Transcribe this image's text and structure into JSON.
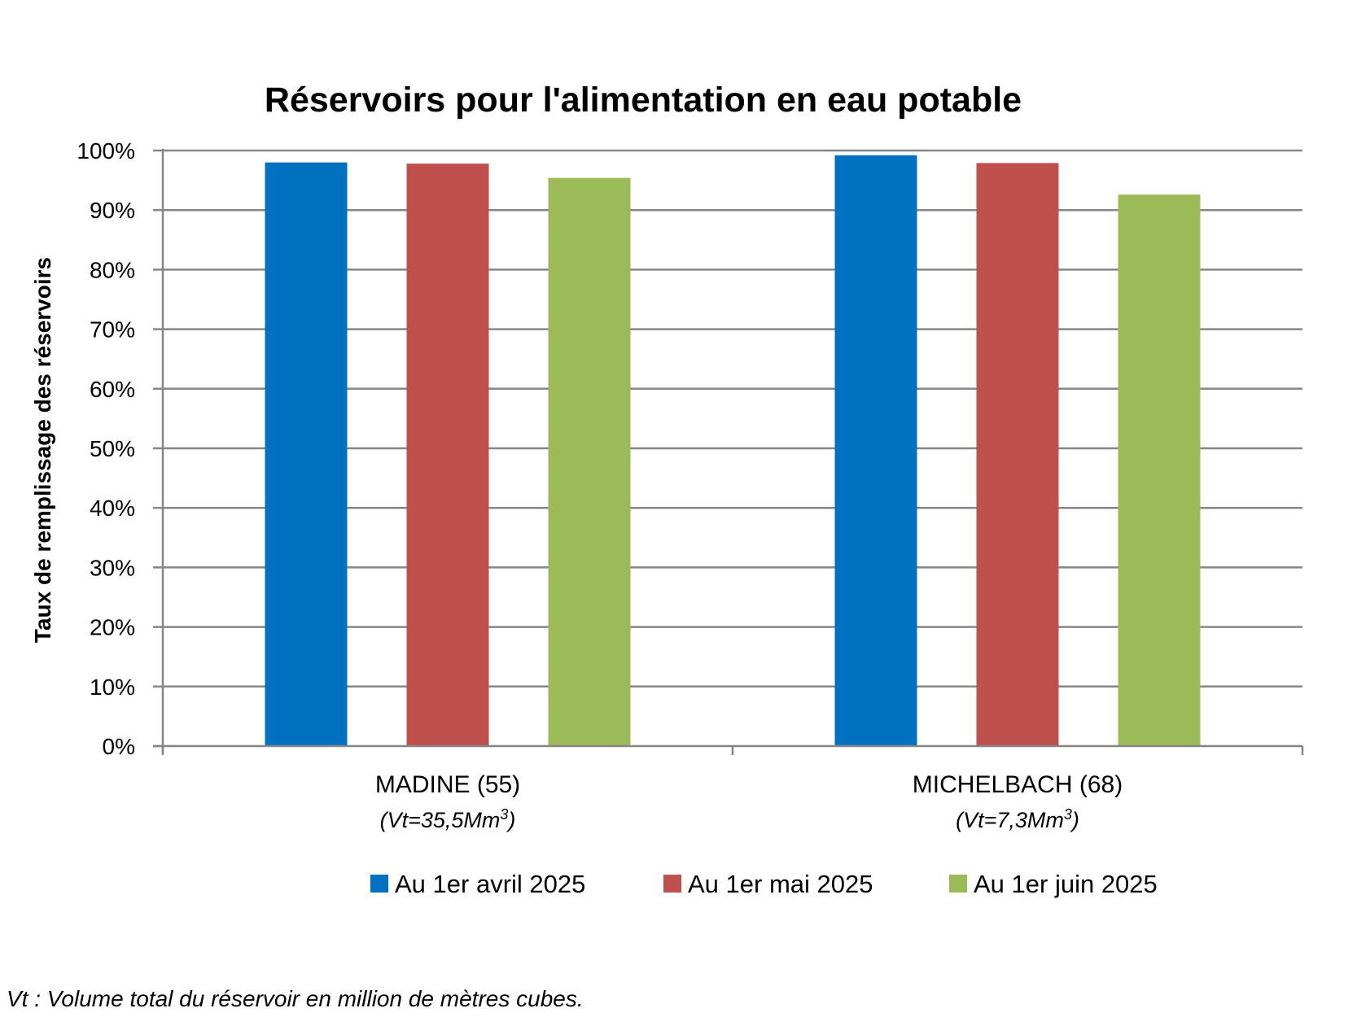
{
  "chart_data": {
    "type": "bar",
    "title": "Réservoirs pour l'alimentation en eau potable",
    "ylabel": "Taux de remplissage des réservoirs",
    "xlabel": "",
    "ylim": [
      0,
      100
    ],
    "yticks": [
      "0%",
      "10%",
      "20%",
      "30%",
      "40%",
      "50%",
      "60%",
      "70%",
      "80%",
      "90%",
      "100%"
    ],
    "categories": [
      {
        "label": "MADINE (55)",
        "sub_prefix": "(Vt=35,5Mm",
        "sub_sup": "3",
        "sub_suffix": ")"
      },
      {
        "label": "MICHELBACH (68)",
        "sub_prefix": "(Vt=7,3Mm",
        "sub_sup": "3",
        "sub_suffix": ")"
      }
    ],
    "series": [
      {
        "name": "Au 1er avril 2025",
        "color": "#0070C0",
        "values": [
          98,
          99.2
        ]
      },
      {
        "name": "Au 1er mai 2025",
        "color": "#C0504D",
        "values": [
          97.8,
          97.9
        ]
      },
      {
        "name": "Au 1er juin 2025",
        "color": "#9BBB59",
        "values": [
          95.4,
          92.6
        ]
      }
    ],
    "grid": true,
    "legend_position": "bottom"
  },
  "footnote": "Vt : Volume total du réservoir en million de mètres cubes."
}
